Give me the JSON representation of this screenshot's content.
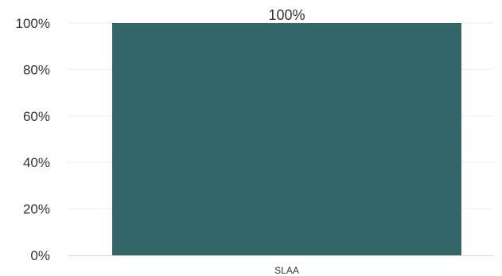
{
  "chart_data": {
    "type": "bar",
    "title": "",
    "categories": [
      "SLAA"
    ],
    "values": [
      100
    ],
    "data_labels": [
      "100%"
    ],
    "xlabel": "",
    "ylabel": "",
    "ylim": [
      0,
      100
    ],
    "yticks": [
      "0%",
      "20%",
      "40%",
      "60%",
      "80%",
      "100%"
    ],
    "ytick_values": [
      0,
      20,
      40,
      60,
      80,
      100
    ],
    "grid": true,
    "legend": "none",
    "bar_color": "#336666",
    "grid_color": "#eeeeee",
    "axis_color": "#d9d9d9"
  }
}
